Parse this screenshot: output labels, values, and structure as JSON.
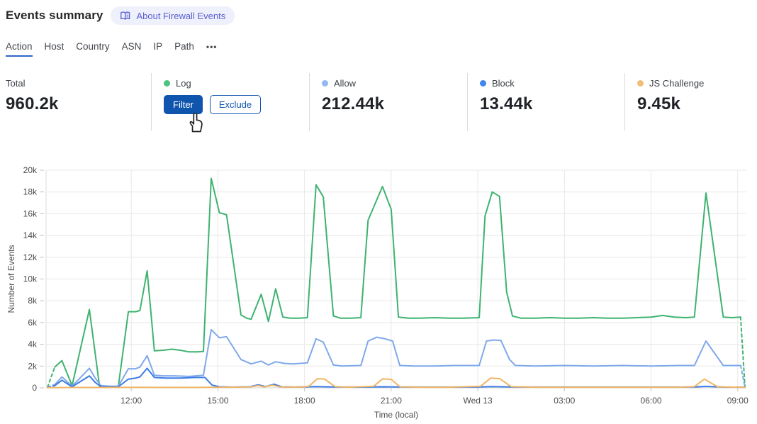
{
  "header": {
    "title": "Events summary",
    "badge": {
      "label": "About Firewall Events",
      "icon": "book-icon",
      "text_color": "#5a5fd0",
      "bg_color": "#eef0fb"
    }
  },
  "tabs": {
    "items": [
      {
        "label": "Action",
        "active": true
      },
      {
        "label": "Host",
        "active": false
      },
      {
        "label": "Country",
        "active": false
      },
      {
        "label": "ASN",
        "active": false
      },
      {
        "label": "IP",
        "active": false
      },
      {
        "label": "Path",
        "active": false
      }
    ],
    "more_label": "•••"
  },
  "stats": {
    "cards": [
      {
        "label": "Total",
        "value": "960.2k"
      },
      {
        "label": "Log",
        "dot_color": "#4cc180",
        "buttons": [
          {
            "label": "Filter",
            "style": "primary"
          },
          {
            "label": "Exclude",
            "style": "secondary"
          }
        ]
      },
      {
        "label": "Allow",
        "dot_color": "#93b9f2",
        "value": "212.44k"
      },
      {
        "label": "Block",
        "dot_color": "#4286f0",
        "value": "13.44k"
      },
      {
        "label": "JS Challenge",
        "dot_color": "#f2bd78",
        "value": "9.45k"
      }
    ]
  },
  "chart_data": {
    "type": "line",
    "title": "",
    "xlabel": "Time (local)",
    "ylabel": "Number of Events",
    "x_domain": [
      9.05,
      33.3
    ],
    "y_domain": [
      0,
      20000
    ],
    "x_ticks": [
      {
        "t": 12,
        "label": "12:00"
      },
      {
        "t": 15,
        "label": "15:00"
      },
      {
        "t": 18,
        "label": "18:00"
      },
      {
        "t": 21,
        "label": "21:00"
      },
      {
        "t": 24,
        "label": "Wed 13"
      },
      {
        "t": 27,
        "label": "03:00"
      },
      {
        "t": 30,
        "label": "06:00"
      },
      {
        "t": 33,
        "label": "09:00"
      }
    ],
    "y_ticks": [
      {
        "v": 0,
        "label": "0"
      },
      {
        "v": 2000,
        "label": "2k"
      },
      {
        "v": 4000,
        "label": "4k"
      },
      {
        "v": 6000,
        "label": "6k"
      },
      {
        "v": 8000,
        "label": "8k"
      },
      {
        "v": 10000,
        "label": "10k"
      },
      {
        "v": 12000,
        "label": "12k"
      },
      {
        "v": 14000,
        "label": "14k"
      },
      {
        "v": 16000,
        "label": "16k"
      },
      {
        "v": 18000,
        "label": "18k"
      },
      {
        "v": 20000,
        "label": "20k"
      }
    ],
    "grid": true,
    "legend": "stat-cards-above",
    "series": [
      {
        "name": "Log",
        "color": "#3eb370",
        "dash_head": 1,
        "dash_tail": 1,
        "points": [
          [
            9.1,
            50
          ],
          [
            9.35,
            1900
          ],
          [
            9.6,
            2500
          ],
          [
            9.95,
            200
          ],
          [
            10.55,
            7200
          ],
          [
            10.9,
            150
          ],
          [
            11.25,
            100
          ],
          [
            11.55,
            120
          ],
          [
            11.9,
            7000
          ],
          [
            12.15,
            7000
          ],
          [
            12.3,
            7100
          ],
          [
            12.55,
            10750
          ],
          [
            12.8,
            3400
          ],
          [
            13.1,
            3450
          ],
          [
            13.4,
            3550
          ],
          [
            13.7,
            3450
          ],
          [
            14.0,
            3300
          ],
          [
            14.3,
            3300
          ],
          [
            14.5,
            3350
          ],
          [
            14.77,
            19250
          ],
          [
            15.05,
            16100
          ],
          [
            15.3,
            15900
          ],
          [
            15.8,
            6700
          ],
          [
            16.0,
            6400
          ],
          [
            16.15,
            6300
          ],
          [
            16.5,
            8600
          ],
          [
            16.75,
            6100
          ],
          [
            17.0,
            9100
          ],
          [
            17.25,
            6500
          ],
          [
            17.5,
            6400
          ],
          [
            17.8,
            6400
          ],
          [
            18.1,
            6450
          ],
          [
            18.4,
            18650
          ],
          [
            18.65,
            17550
          ],
          [
            19.0,
            6600
          ],
          [
            19.25,
            6400
          ],
          [
            19.6,
            6400
          ],
          [
            19.95,
            6450
          ],
          [
            20.2,
            15400
          ],
          [
            20.7,
            18500
          ],
          [
            21.0,
            16400
          ],
          [
            21.25,
            6500
          ],
          [
            21.6,
            6400
          ],
          [
            22.0,
            6400
          ],
          [
            22.5,
            6450
          ],
          [
            23.0,
            6400
          ],
          [
            23.5,
            6400
          ],
          [
            24.05,
            6450
          ],
          [
            24.25,
            15800
          ],
          [
            24.5,
            18000
          ],
          [
            24.75,
            17600
          ],
          [
            25.0,
            8800
          ],
          [
            25.2,
            6600
          ],
          [
            25.5,
            6400
          ],
          [
            26.0,
            6400
          ],
          [
            26.5,
            6450
          ],
          [
            27.0,
            6400
          ],
          [
            27.5,
            6400
          ],
          [
            28.0,
            6450
          ],
          [
            28.5,
            6400
          ],
          [
            29.0,
            6400
          ],
          [
            29.5,
            6450
          ],
          [
            30.0,
            6500
          ],
          [
            30.4,
            6650
          ],
          [
            30.8,
            6500
          ],
          [
            31.2,
            6450
          ],
          [
            31.5,
            6500
          ],
          [
            31.9,
            17900
          ],
          [
            32.5,
            6500
          ],
          [
            32.8,
            6450
          ],
          [
            33.1,
            6500
          ],
          [
            33.25,
            100
          ]
        ]
      },
      {
        "name": "Allow",
        "color": "#7fa8ea",
        "dash_head": 1,
        "dash_tail": 1,
        "points": [
          [
            9.1,
            50
          ],
          [
            9.35,
            300
          ],
          [
            9.6,
            1000
          ],
          [
            9.95,
            150
          ],
          [
            10.55,
            1800
          ],
          [
            10.75,
            900
          ],
          [
            10.95,
            200
          ],
          [
            11.25,
            150
          ],
          [
            11.55,
            150
          ],
          [
            11.9,
            1750
          ],
          [
            12.15,
            1750
          ],
          [
            12.3,
            1900
          ],
          [
            12.55,
            2950
          ],
          [
            12.8,
            1150
          ],
          [
            13.1,
            1100
          ],
          [
            13.5,
            1100
          ],
          [
            14.0,
            1050
          ],
          [
            14.5,
            1150
          ],
          [
            14.77,
            5350
          ],
          [
            15.05,
            4600
          ],
          [
            15.3,
            4700
          ],
          [
            15.8,
            2600
          ],
          [
            16.15,
            2200
          ],
          [
            16.5,
            2450
          ],
          [
            16.75,
            2100
          ],
          [
            17.0,
            2400
          ],
          [
            17.3,
            2250
          ],
          [
            17.6,
            2200
          ],
          [
            18.1,
            2300
          ],
          [
            18.4,
            4500
          ],
          [
            18.65,
            4200
          ],
          [
            19.0,
            2100
          ],
          [
            19.3,
            2000
          ],
          [
            19.95,
            2050
          ],
          [
            20.2,
            4300
          ],
          [
            20.5,
            4650
          ],
          [
            20.8,
            4500
          ],
          [
            21.05,
            4300
          ],
          [
            21.3,
            2050
          ],
          [
            21.8,
            2000
          ],
          [
            22.5,
            2000
          ],
          [
            23.2,
            2050
          ],
          [
            24.05,
            2050
          ],
          [
            24.3,
            4300
          ],
          [
            24.55,
            4400
          ],
          [
            24.8,
            4350
          ],
          [
            25.1,
            2600
          ],
          [
            25.3,
            2050
          ],
          [
            26.0,
            2000
          ],
          [
            27.0,
            2050
          ],
          [
            28.0,
            2000
          ],
          [
            29.0,
            2050
          ],
          [
            30.0,
            2000
          ],
          [
            31.0,
            2050
          ],
          [
            31.5,
            2050
          ],
          [
            31.9,
            4300
          ],
          [
            32.5,
            2050
          ],
          [
            33.1,
            2050
          ],
          [
            33.25,
            60
          ]
        ]
      },
      {
        "name": "Block",
        "color": "#3c7ce6",
        "dash_head": 1,
        "dash_tail": 0,
        "points": [
          [
            9.1,
            30
          ],
          [
            9.35,
            200
          ],
          [
            9.6,
            700
          ],
          [
            9.95,
            100
          ],
          [
            10.55,
            1100
          ],
          [
            10.75,
            500
          ],
          [
            10.95,
            120
          ],
          [
            11.55,
            100
          ],
          [
            11.9,
            800
          ],
          [
            12.15,
            900
          ],
          [
            12.3,
            1000
          ],
          [
            12.55,
            1800
          ],
          [
            12.8,
            950
          ],
          [
            13.2,
            900
          ],
          [
            13.7,
            900
          ],
          [
            14.2,
            950
          ],
          [
            14.55,
            950
          ],
          [
            14.8,
            250
          ],
          [
            15.05,
            100
          ],
          [
            15.5,
            70
          ],
          [
            16.1,
            100
          ],
          [
            16.4,
            280
          ],
          [
            16.65,
            120
          ],
          [
            16.95,
            330
          ],
          [
            17.2,
            100
          ],
          [
            17.7,
            70
          ],
          [
            18.4,
            120
          ],
          [
            19.0,
            80
          ],
          [
            20.0,
            70
          ],
          [
            20.7,
            100
          ],
          [
            21.3,
            80
          ],
          [
            22.5,
            70
          ],
          [
            24.0,
            80
          ],
          [
            24.5,
            110
          ],
          [
            25.2,
            80
          ],
          [
            26.5,
            70
          ],
          [
            28.0,
            70
          ],
          [
            30.0,
            70
          ],
          [
            31.5,
            80
          ],
          [
            31.9,
            130
          ],
          [
            32.5,
            70
          ],
          [
            33.2,
            60
          ]
        ]
      },
      {
        "name": "JS Challenge",
        "color": "#f0b566",
        "dash_head": 0,
        "dash_tail": 0,
        "points": [
          [
            9.1,
            20
          ],
          [
            10.0,
            30
          ],
          [
            11.0,
            30
          ],
          [
            12.0,
            50
          ],
          [
            13.0,
            40
          ],
          [
            14.0,
            40
          ],
          [
            15.0,
            50
          ],
          [
            16.1,
            80
          ],
          [
            16.4,
            200
          ],
          [
            16.6,
            90
          ],
          [
            16.9,
            240
          ],
          [
            17.15,
            90
          ],
          [
            17.8,
            60
          ],
          [
            18.15,
            150
          ],
          [
            18.45,
            850
          ],
          [
            18.7,
            800
          ],
          [
            19.05,
            120
          ],
          [
            19.5,
            60
          ],
          [
            20.4,
            150
          ],
          [
            20.7,
            820
          ],
          [
            21.0,
            780
          ],
          [
            21.3,
            100
          ],
          [
            22.0,
            60
          ],
          [
            23.0,
            60
          ],
          [
            24.1,
            150
          ],
          [
            24.45,
            900
          ],
          [
            24.75,
            850
          ],
          [
            25.15,
            120
          ],
          [
            26.0,
            60
          ],
          [
            27.5,
            60
          ],
          [
            29.0,
            60
          ],
          [
            31.0,
            60
          ],
          [
            31.5,
            120
          ],
          [
            31.85,
            800
          ],
          [
            32.3,
            100
          ],
          [
            33.0,
            60
          ],
          [
            33.25,
            50
          ]
        ]
      }
    ]
  }
}
